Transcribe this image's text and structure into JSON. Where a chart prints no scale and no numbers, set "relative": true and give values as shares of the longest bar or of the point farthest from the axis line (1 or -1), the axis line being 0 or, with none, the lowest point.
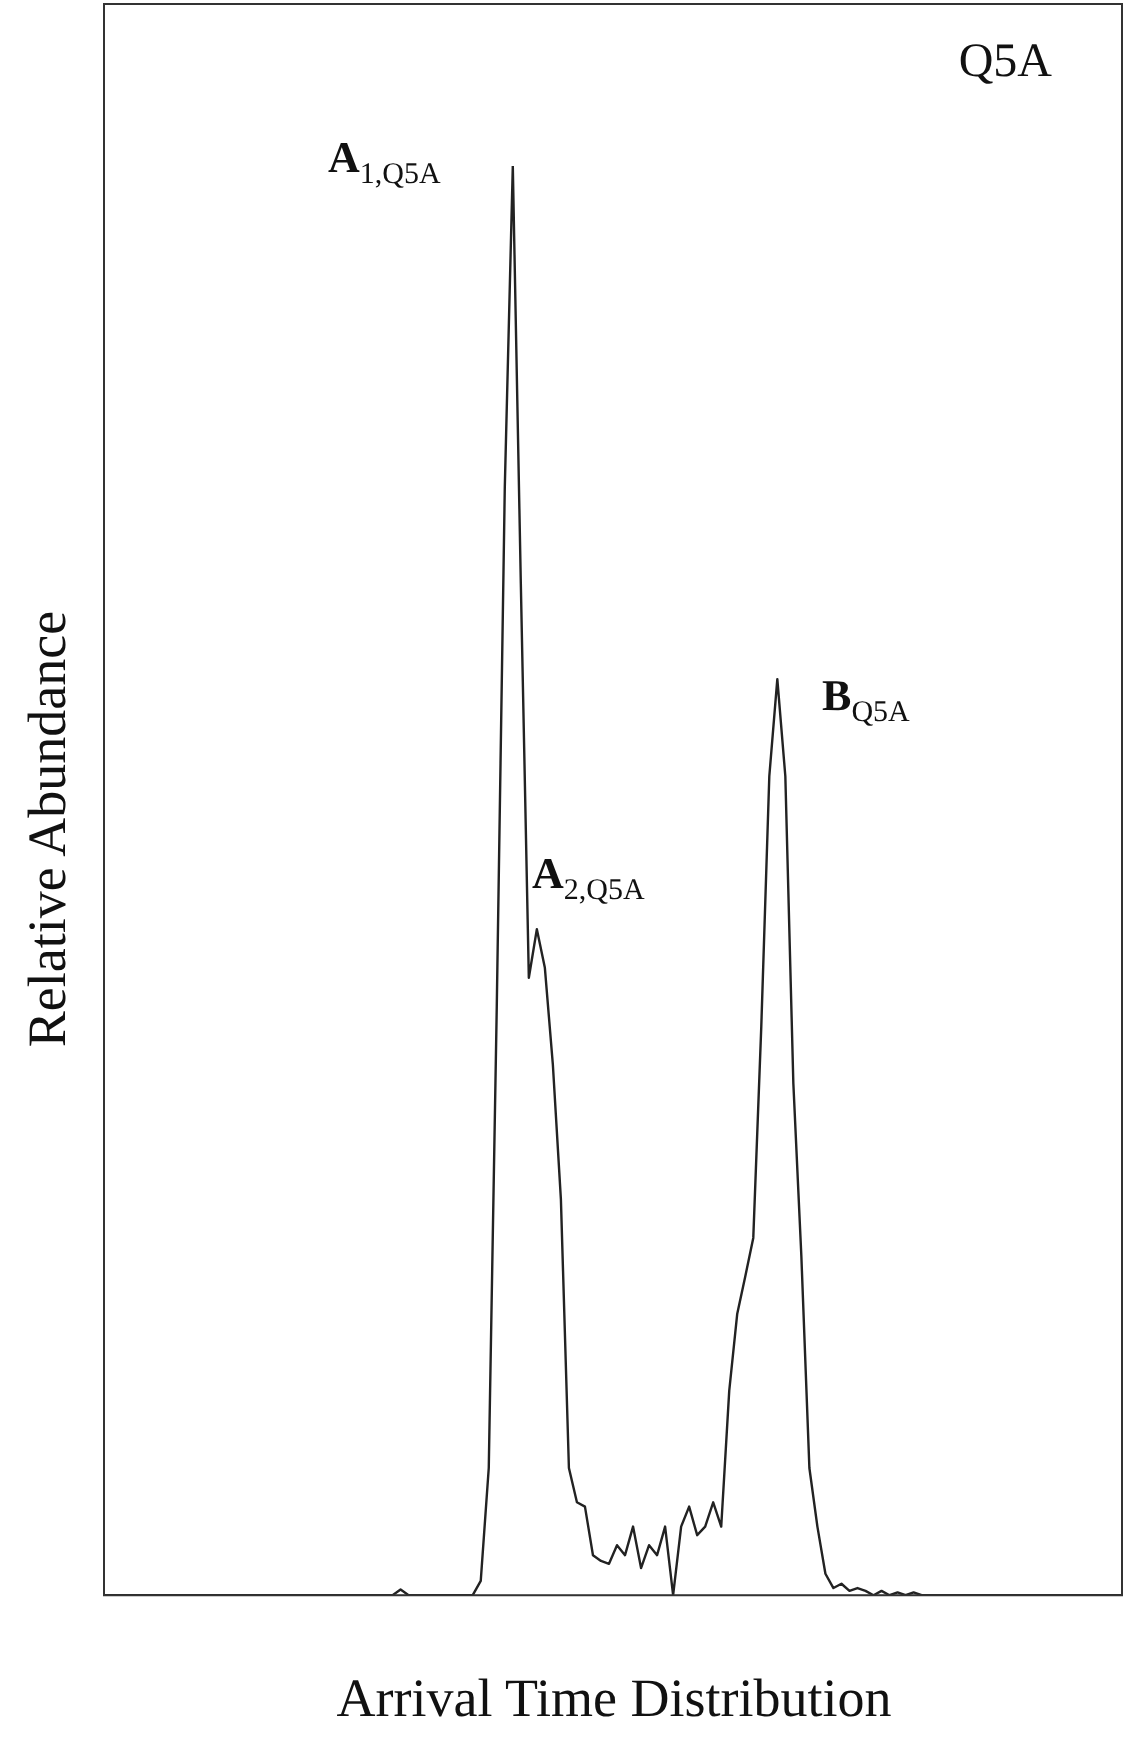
{
  "chart_data": {
    "type": "line",
    "title": "Q5A",
    "xlabel": "Arrival Time Distribution",
    "ylabel": "Relative Abundance",
    "relative": true,
    "color": "#222222",
    "marker": "none",
    "legend": false,
    "annotations": [
      "A$_{1,Q5A}$",
      "A$_{2,Q5A}$",
      "B$_{Q5A}$"
    ],
    "categories": [
      null,
      null,
      null,
      null,
      null,
      null,
      null,
      null,
      null,
      null,
      null,
      null,
      null,
      null,
      null,
      null,
      null,
      null,
      null,
      null,
      null,
      null,
      null,
      null,
      null,
      null,
      null,
      null,
      null,
      null,
      null,
      null,
      null,
      null,
      null,
      null,
      null,
      null,
      null,
      null,
      null,
      null,
      null,
      null,
      null,
      null,
      null,
      null,
      null,
      null,
      null,
      null,
      null,
      null,
      null,
      null,
      null,
      null,
      null,
      null,
      null,
      null,
      null,
      null,
      null,
      null,
      null,
      null,
      null,
      null,
      null,
      null,
      null,
      null,
      null,
      null,
      null,
      null,
      null,
      null,
      null,
      null,
      null,
      null,
      null,
      null,
      null,
      null,
      null,
      null,
      null,
      null,
      null,
      null,
      null,
      null,
      null,
      null,
      null,
      null,
      null,
      null,
      null,
      null,
      null,
      null,
      null,
      null,
      null,
      null,
      null,
      null,
      null,
      null,
      null,
      null,
      null,
      null,
      null,
      null,
      null,
      null,
      null,
      null,
      null,
      null,
      null,
      null
    ],
    "values": [
      0,
      0,
      0,
      0,
      0,
      0,
      0,
      0,
      0,
      0,
      0,
      0,
      0,
      0,
      0,
      0,
      0,
      0,
      0,
      0,
      0,
      0,
      0,
      0,
      0,
      0,
      0,
      0,
      0,
      0,
      0,
      0,
      0,
      0,
      0,
      0,
      0,
      0.004,
      0,
      0,
      0,
      0,
      0,
      0,
      0,
      0,
      0,
      0.01,
      0.089,
      0.412,
      0.775,
      1,
      0.708,
      0.432,
      0.466,
      0.439,
      0.371,
      0.277,
      0.089,
      0.065,
      0.062,
      0.028,
      0.024,
      0.022,
      0.035,
      0.028,
      0.048,
      0.019,
      0.035,
      0.028,
      0.048,
      0,
      0.048,
      0.062,
      0.042,
      0.048,
      0.065,
      0.048,
      0.143,
      0.197,
      0.223,
      0.25,
      0.398,
      0.573,
      0.641,
      0.573,
      0.358,
      0.237,
      0.089,
      0.048,
      0.015,
      0.005,
      0.008,
      0.003,
      0.005,
      0.003,
      0,
      0.003,
      0,
      0.002,
      0,
      0.002,
      0,
      0,
      0,
      0,
      0,
      0,
      0,
      0,
      0,
      0,
      0,
      0,
      0,
      0,
      0,
      0,
      0,
      0,
      0,
      0,
      0,
      0,
      0,
      0,
      0,
      0
    ]
  }
}
